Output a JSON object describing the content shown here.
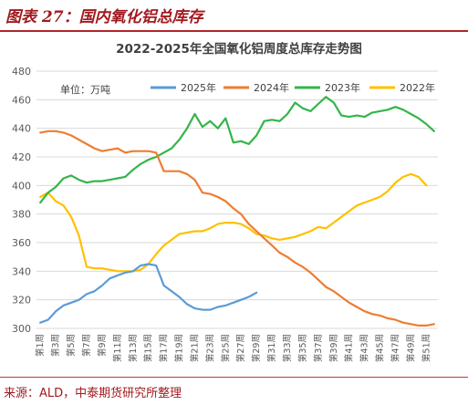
{
  "figure": {
    "title": "图表 27：国内氧化铝总库存",
    "source": "来源：ALD，中泰期货研究所整理"
  },
  "colors": {
    "accent": "#a11a1f",
    "grid": "#d9d9d9"
  },
  "chart_data": {
    "type": "line",
    "title": "2022-2025年全国氧化铝周度总库存走势图",
    "unit_label": "单位：万吨",
    "xlabel": "",
    "ylabel": "",
    "ylim": [
      300,
      480
    ],
    "yticks": [
      300,
      320,
      340,
      360,
      380,
      400,
      420,
      440,
      460,
      480
    ],
    "grid": true,
    "legend_position": "top",
    "x": [
      1,
      2,
      3,
      4,
      5,
      6,
      7,
      8,
      9,
      10,
      11,
      12,
      13,
      14,
      15,
      16,
      17,
      18,
      19,
      20,
      21,
      22,
      23,
      24,
      25,
      26,
      27,
      28,
      29,
      30,
      31,
      32,
      33,
      34,
      35,
      36,
      37,
      38,
      39,
      40,
      41,
      42,
      43,
      44,
      45,
      46,
      47,
      48,
      49,
      50,
      51,
      52
    ],
    "xtick_labels": [
      "第1周",
      "第3周",
      "第5周",
      "第7周",
      "第9周",
      "第11周",
      "第13周",
      "第15周",
      "第17周",
      "第19周",
      "第21周",
      "第23周",
      "第25周",
      "第27周",
      "第29周",
      "第31周",
      "第33周",
      "第35周",
      "第37周",
      "第39周",
      "第41周",
      "第43周",
      "第45周",
      "第47周",
      "第49周",
      "第51周"
    ],
    "series": [
      {
        "name": "2025年",
        "color": "#5b9bd5",
        "values": [
          304,
          306,
          312,
          316,
          318,
          320,
          324,
          326,
          330,
          335,
          337,
          339,
          340,
          344,
          345,
          344,
          330,
          326,
          322,
          317,
          314,
          313,
          313,
          315,
          316,
          318,
          320,
          322,
          325,
          null,
          null,
          null,
          null,
          null,
          null,
          null,
          null,
          null,
          null,
          null,
          null,
          null,
          null,
          null,
          null,
          null,
          null,
          null,
          null,
          null,
          null,
          null
        ]
      },
      {
        "name": "2024年",
        "color": "#ed7d31",
        "values": [
          437,
          438,
          438,
          437,
          435,
          432,
          429,
          426,
          424,
          425,
          426,
          423,
          424,
          424,
          424,
          423,
          410,
          410,
          410,
          408,
          404,
          395,
          394,
          392,
          389,
          384,
          380,
          373,
          368,
          363,
          358,
          353,
          350,
          346,
          343,
          339,
          334,
          329,
          326,
          322,
          318,
          315,
          312,
          310,
          309,
          307,
          306,
          304,
          303,
          302,
          302,
          303
        ]
      },
      {
        "name": "2023年",
        "color": "#33b54a",
        "values": [
          388,
          395,
          399,
          405,
          407,
          404,
          402,
          403,
          403,
          404,
          405,
          406,
          411,
          415,
          418,
          420,
          423,
          426,
          432,
          440,
          450,
          441,
          445,
          440,
          447,
          430,
          431,
          429,
          435,
          445,
          446,
          445,
          450,
          458,
          454,
          452,
          457,
          462,
          458,
          449,
          448,
          449,
          448,
          451,
          452,
          453,
          455,
          453,
          450,
          447,
          443,
          438
        ]
      },
      {
        "name": "2022年",
        "color": "#ffc000",
        "values": [
          392,
          395,
          389,
          386,
          378,
          365,
          343,
          342,
          342,
          341,
          340,
          340,
          340,
          341,
          345,
          352,
          358,
          362,
          366,
          367,
          368,
          368,
          370,
          373,
          374,
          374,
          373,
          370,
          366,
          365,
          363,
          362,
          363,
          364,
          366,
          368,
          371,
          370,
          374,
          378,
          382,
          386,
          388,
          390,
          392,
          396,
          402,
          406,
          408,
          406,
          400,
          null
        ]
      }
    ]
  }
}
